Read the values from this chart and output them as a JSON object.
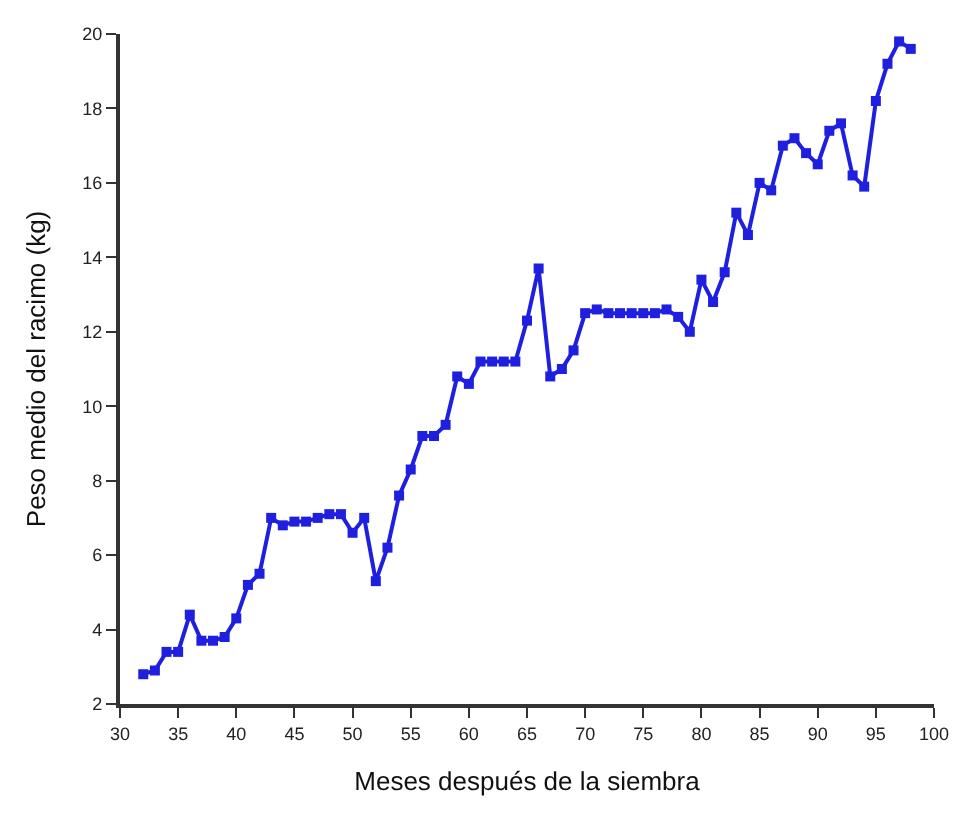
{
  "chart_data": {
    "type": "line",
    "xlabel": "Meses después de la siembra",
    "ylabel": "Peso medio del racimo (kg)",
    "x": [
      32,
      33,
      34,
      35,
      36,
      37,
      38,
      39,
      40,
      41,
      42,
      43,
      44,
      45,
      46,
      47,
      48,
      49,
      50,
      51,
      52,
      53,
      54,
      55,
      56,
      57,
      58,
      59,
      60,
      61,
      62,
      63,
      64,
      65,
      66,
      67,
      68,
      69,
      70,
      71,
      72,
      73,
      74,
      75,
      76,
      77,
      78,
      79,
      80,
      81,
      82,
      83,
      84,
      85,
      86,
      87,
      88,
      89,
      90,
      91,
      92,
      93,
      94,
      95,
      96,
      97,
      98
    ],
    "series": [
      {
        "color": "#1f1fe0",
        "values": [
          2.8,
          2.9,
          3.4,
          3.4,
          4.4,
          3.7,
          3.7,
          3.8,
          4.3,
          5.2,
          5.5,
          7.0,
          6.8,
          6.9,
          6.9,
          7.0,
          7.1,
          7.1,
          6.6,
          7.0,
          5.3,
          6.2,
          7.6,
          8.3,
          9.2,
          9.2,
          9.5,
          10.8,
          10.6,
          11.2,
          11.2,
          11.2,
          11.2,
          12.3,
          13.7,
          10.8,
          11.0,
          11.5,
          12.5,
          12.6,
          12.5,
          12.5,
          12.5,
          12.5,
          12.5,
          12.6,
          12.4,
          12.0,
          13.4,
          12.8,
          13.6,
          15.2,
          14.6,
          16.0,
          15.8,
          17.0,
          17.2,
          16.8,
          16.5,
          17.4,
          17.6,
          16.2,
          15.9,
          18.2,
          19.2,
          19.8,
          19.6
        ]
      }
    ],
    "xlim": [
      30,
      100
    ],
    "xticks": [
      30,
      35,
      40,
      45,
      50,
      55,
      60,
      65,
      70,
      75,
      80,
      85,
      90,
      95,
      100
    ],
    "ylim": [
      2,
      20
    ],
    "yticks": [
      2,
      4,
      6,
      8,
      10,
      12,
      14,
      16,
      18,
      20
    ],
    "marker": "square",
    "line_style": "solid"
  }
}
